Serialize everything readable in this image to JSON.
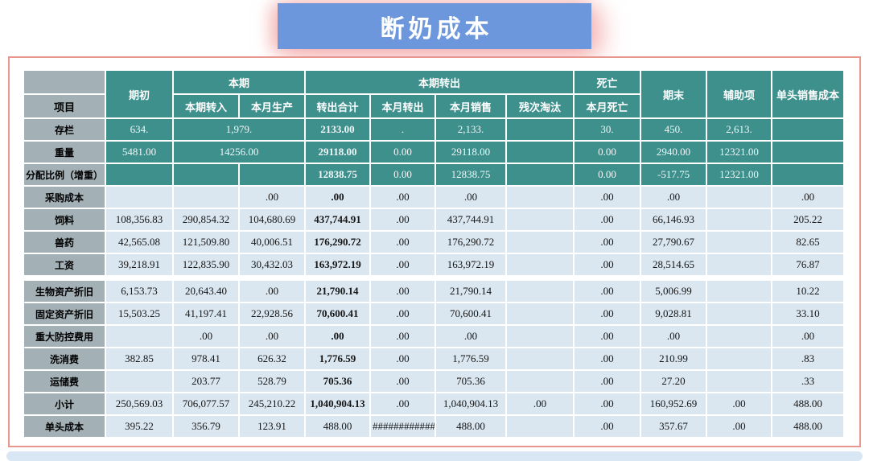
{
  "title": "断奶成本",
  "table": {
    "header": {
      "item": "项目",
      "opening": "期初",
      "current_period": "本期",
      "period_transfer_in": "本期转入",
      "month_production": "本月生产",
      "period_transfer_out": "本期转出",
      "transfer_out_total": "转出合计",
      "month_transfer_out": "本月转出",
      "month_sales": "本月销售",
      "defect_cull": "残次淘汰",
      "death": "死亡",
      "month_death": "本月死亡",
      "closing": "期末",
      "auxiliary": "辅助项",
      "per_head_sales_cost": "单头销售成本"
    },
    "rows": [
      {
        "label": "存栏",
        "theme": "teal",
        "merge_in_prod": true,
        "values": [
          "634.",
          "1,979.",
          null,
          "2133.00",
          ".",
          "2,133.",
          "",
          "30.",
          "450.",
          "2,613.",
          ""
        ]
      },
      {
        "label": "重量",
        "theme": "teal",
        "merge_in_prod": true,
        "values": [
          "5481.00",
          "14256.00",
          null,
          "29118.00",
          "0.00",
          "29118.00",
          "",
          "0.00",
          "2940.00",
          "12321.00",
          ""
        ]
      },
      {
        "label": "分配比例（增重）",
        "theme": "teal",
        "values": [
          "",
          "",
          "",
          "12838.75",
          "0.00",
          "12838.75",
          "",
          "0.00",
          "-517.75",
          "12321.00",
          ""
        ]
      },
      {
        "label": "采购成本",
        "theme": "light",
        "values": [
          "",
          "",
          ".00",
          ".00",
          ".00",
          ".00",
          "",
          ".00",
          ".00",
          "",
          ".00"
        ]
      },
      {
        "label": "饲料",
        "theme": "light",
        "values": [
          "108,356.83",
          "290,854.32",
          "104,680.69",
          "437,744.91",
          ".00",
          "437,744.91",
          "",
          ".00",
          "66,146.93",
          "",
          "205.22"
        ]
      },
      {
        "label": "兽药",
        "theme": "light",
        "values": [
          "42,565.08",
          "121,509.80",
          "40,006.51",
          "176,290.72",
          ".00",
          "176,290.72",
          "",
          ".00",
          "27,790.67",
          "",
          "82.65"
        ]
      },
      {
        "label": "工资",
        "theme": "light",
        "values": [
          "39,218.91",
          "122,835.90",
          "30,432.03",
          "163,972.19",
          ".00",
          "163,972.19",
          "",
          ".00",
          "28,514.65",
          "",
          "76.87"
        ]
      },
      {
        "label": "生物资产折旧",
        "theme": "light",
        "gap_before": true,
        "values": [
          "6,153.73",
          "20,643.40",
          ".00",
          "21,790.14",
          ".00",
          "21,790.14",
          "",
          ".00",
          "5,006.99",
          "",
          "10.22"
        ]
      },
      {
        "label": "固定资产折旧",
        "theme": "light",
        "values": [
          "15,503.25",
          "41,197.41",
          "22,928.56",
          "70,600.41",
          ".00",
          "70,600.41",
          "",
          ".00",
          "9,028.81",
          "",
          "33.10"
        ]
      },
      {
        "label": "重大防控费用",
        "theme": "light",
        "values": [
          "",
          ".00",
          ".00",
          ".00",
          ".00",
          ".00",
          "",
          ".00",
          ".00",
          "",
          ".00"
        ]
      },
      {
        "label": "洗消费",
        "theme": "light",
        "values": [
          "382.85",
          "978.41",
          "626.32",
          "1,776.59",
          ".00",
          "1,776.59",
          "",
          ".00",
          "210.99",
          "",
          ".83"
        ]
      },
      {
        "label": "运储费",
        "theme": "light",
        "values": [
          "",
          "203.77",
          "528.79",
          "705.36",
          ".00",
          "705.36",
          "",
          ".00",
          "27.20",
          "",
          ".33"
        ]
      },
      {
        "label": "小计",
        "theme": "light",
        "values": [
          "250,569.03",
          "706,077.57",
          "245,210.22",
          "1,040,904.13",
          ".00",
          "1,040,904.13",
          ".00",
          ".00",
          "160,952.69",
          ".00",
          "488.00"
        ]
      },
      {
        "label": "单头成本",
        "theme": "light",
        "total_bold": false,
        "values": [
          "395.22",
          "356.79",
          "123.91",
          "488.00",
          "############",
          "488.00",
          "",
          ".00",
          "357.67",
          ".00",
          "488.00"
        ]
      }
    ]
  },
  "colors": {
    "header_teal": "#3E908D",
    "label_gray": "#A3B0B6",
    "row_light_blue": "#DAE7F1",
    "title_blue": "#6D97DC",
    "frame_red": "#E8978F",
    "bottom_bar_blue": "#D9E6F4"
  }
}
